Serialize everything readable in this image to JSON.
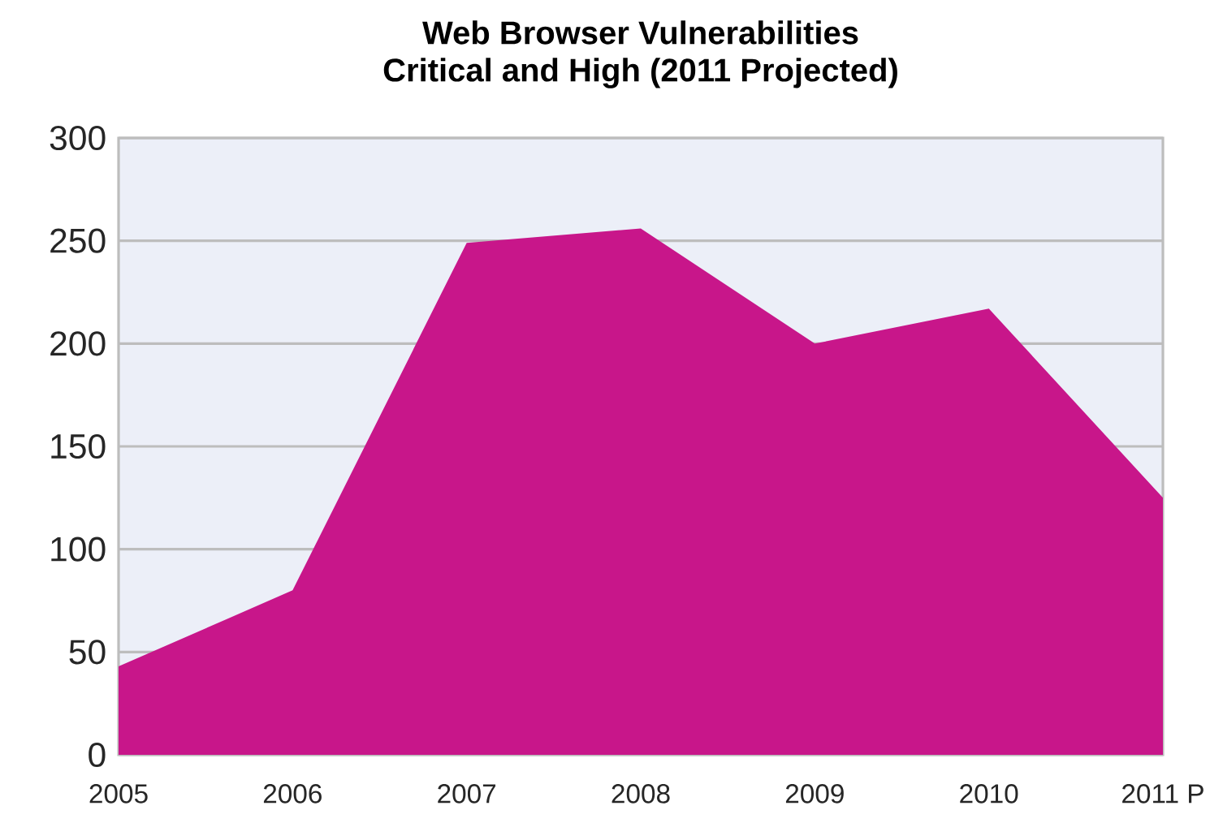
{
  "chart_data": {
    "type": "area",
    "title": "Web Browser Vulnerabilities",
    "subtitle": "Critical and High (2011 Projected)",
    "categories": [
      "2005",
      "2006",
      "2007",
      "2008",
      "2009",
      "2010",
      "2011 P"
    ],
    "values": [
      43,
      80,
      249,
      256,
      200,
      217,
      125
    ],
    "color": "#c8168a",
    "ylim": [
      0,
      300
    ],
    "yticks": [
      0,
      50,
      100,
      150,
      200,
      250,
      300
    ],
    "grid": "y"
  }
}
